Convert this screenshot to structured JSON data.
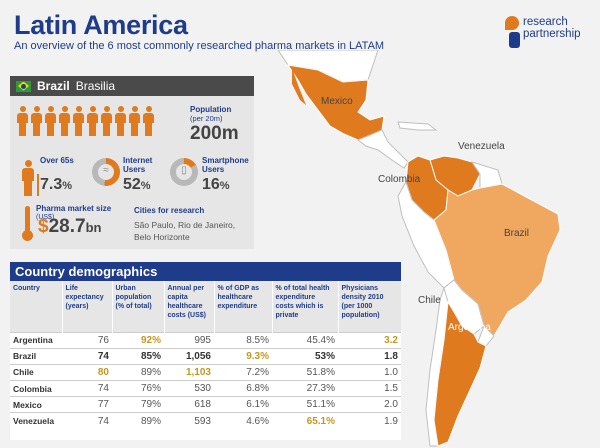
{
  "header": {
    "title": "Latin America",
    "subtitle": "An overview of the 6 most commonly researched pharma markets in LATAM",
    "logo_line1": "research",
    "logo_line2": "partnership"
  },
  "map": {
    "labels": {
      "mexico": "Mexico",
      "venezuela": "Venezuela",
      "colombia": "Colombia",
      "brazil": "Brazil",
      "chile": "Chile",
      "argentina": "Argentina"
    },
    "colors": {
      "highlight": "#e07a1e",
      "highlight_light": "#f0a860",
      "land": "#ffffff",
      "border": "#bfbfbf"
    }
  },
  "brazil": {
    "country": "Brazil",
    "capital": "Brasilia",
    "population_label": "Population",
    "population_sub": "(per 20m)",
    "population_value": "200m",
    "population_icons": 10,
    "over65_label": "Over 65s",
    "over65_value": "7.3",
    "over65_unit": "%",
    "internet_label_1": "Internet",
    "internet_label_2": "Users",
    "internet_value": "52",
    "internet_unit": "%",
    "internet_fraction": 0.52,
    "smartphone_label_1": "Smartphone",
    "smartphone_label_2": "Users",
    "smartphone_value": "16",
    "smartphone_unit": "%",
    "smartphone_fraction": 0.16,
    "pharma_label": "Pharma market size",
    "pharma_sub": "(US$)",
    "pharma_currency": "$",
    "pharma_value": "28.7",
    "pharma_unit": "bn",
    "cities_label": "Cities for research",
    "cities": "São Paulo, Rio de Janeiro, Belo Horizonte"
  },
  "demographics": {
    "title": "Country demographics",
    "columns": [
      "Country",
      "Life expectancy (years)",
      "Urban population (% of total)",
      "Annual per capita healthcare costs (US$)",
      "% of GDP as healthcare expenditure",
      "% of total health expenditure costs which is private",
      "Physicians density 2010 (per 1000 population)"
    ],
    "rows": [
      [
        "Argentina",
        "76",
        "92%",
        "995",
        "8.5%",
        "45.4%",
        "3.2"
      ],
      [
        "Brazil",
        "74",
        "85%",
        "1,056",
        "9.3%",
        "53%",
        "1.8"
      ],
      [
        "Chile",
        "80",
        "89%",
        "1,103",
        "7.2%",
        "51.8%",
        "1.0"
      ],
      [
        "Colombia",
        "74",
        "76%",
        "530",
        "6.8%",
        "27.3%",
        "1.5"
      ],
      [
        "Mexico",
        "77",
        "79%",
        "618",
        "6.1%",
        "51.1%",
        "2.0"
      ],
      [
        "Venezuela",
        "74",
        "89%",
        "593",
        "4.6%",
        "65.1%",
        "1.9"
      ]
    ],
    "highlight_color": "#c8961e"
  }
}
